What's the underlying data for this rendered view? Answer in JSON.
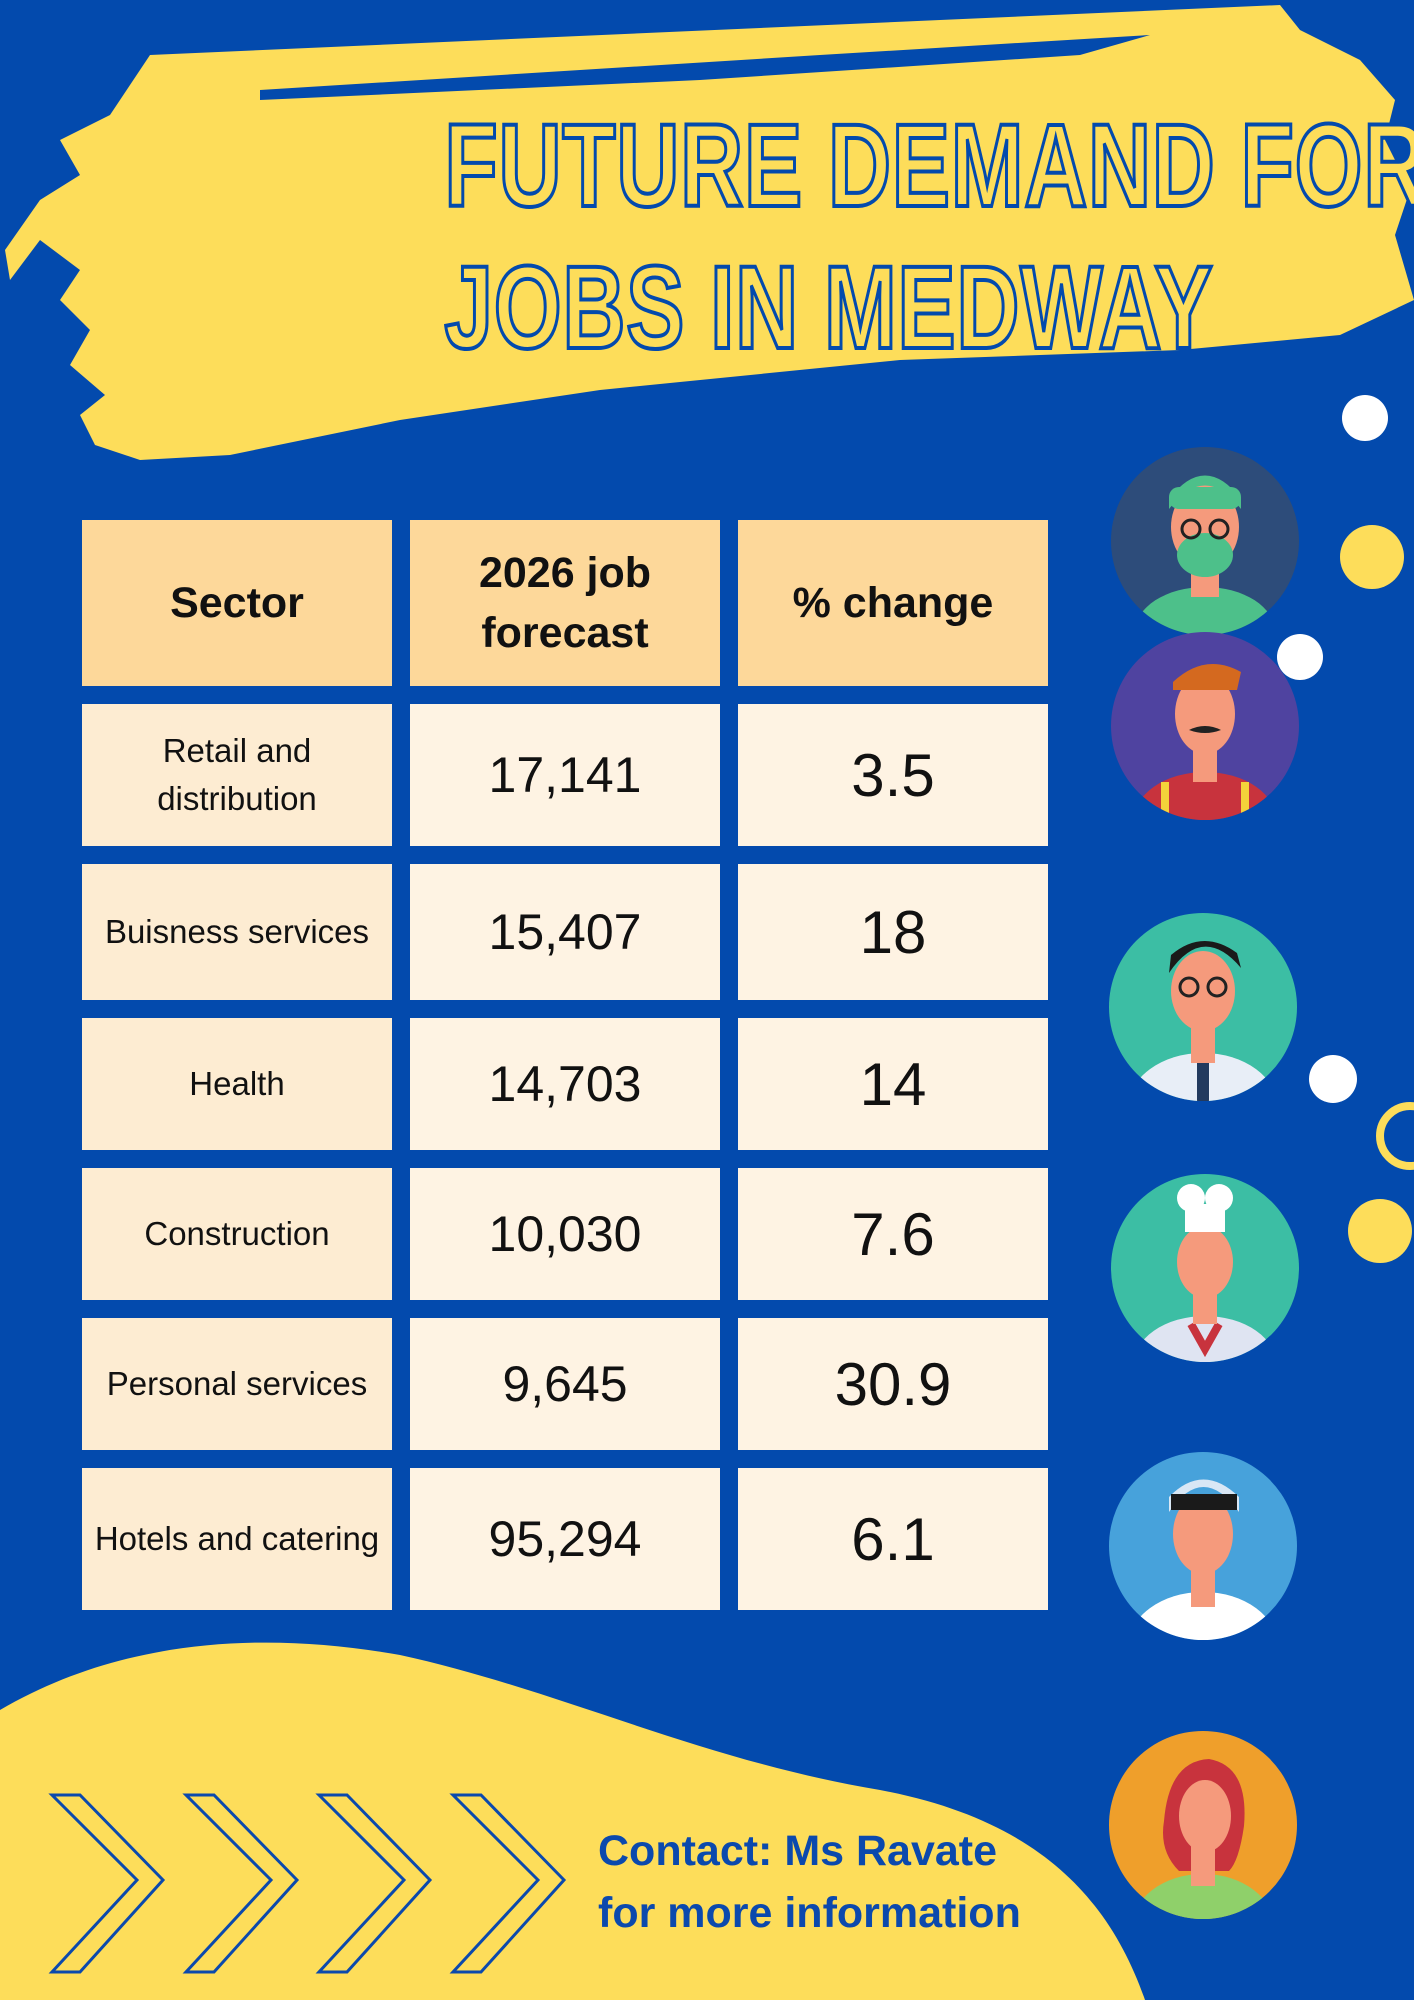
{
  "title": {
    "line1": "FUTURE DEMAND FOR",
    "line2": "JOBS IN MEDWAY"
  },
  "table": {
    "headers": [
      "Sector",
      "2026 job forecast",
      "% change"
    ],
    "rows": [
      {
        "sector": "Retail and distribution",
        "forecast": "17,141",
        "change": "3.5"
      },
      {
        "sector": "Buisness services",
        "forecast": "15,407",
        "change": "18"
      },
      {
        "sector": "Health",
        "forecast": "14,703",
        "change": "14"
      },
      {
        "sector": "Construction",
        "forecast": "10,030",
        "change": "7.6"
      },
      {
        "sector": "Personal services",
        "forecast": "9,645",
        "change": "30.9"
      },
      {
        "sector": "Hotels and catering",
        "forecast": "95,294",
        "change": "6.1"
      }
    ]
  },
  "contact": {
    "line1": "Contact: Ms Ravate",
    "line2": "for more information"
  },
  "colors": {
    "background": "#034aad",
    "accent_yellow": "#fddd5a",
    "header_cell": "#fdd89a",
    "body_cell": "#fef3e3"
  },
  "avatars": [
    "surgeon-icon",
    "mustache-worker-icon",
    "doctor-icon",
    "chef-icon",
    "nurse-icon",
    "gardener-icon"
  ]
}
